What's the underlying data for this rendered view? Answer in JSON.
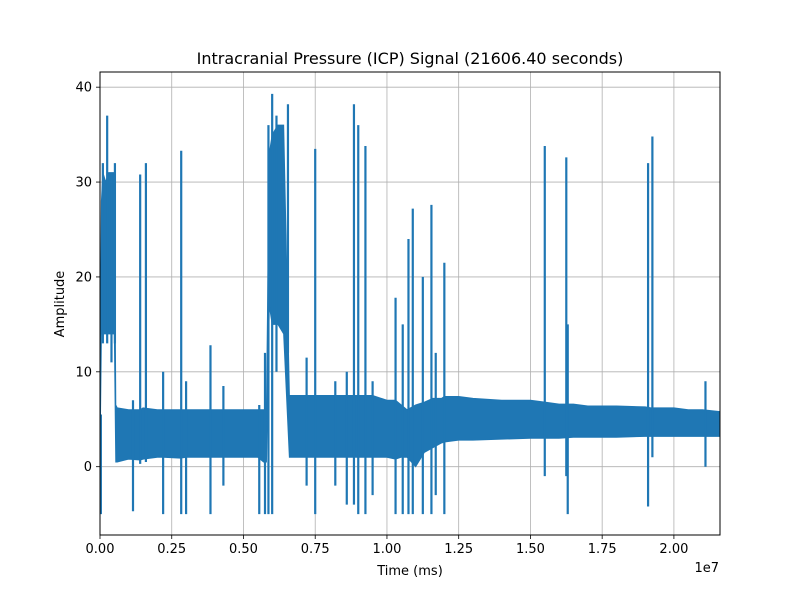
{
  "chart_data": {
    "type": "line",
    "title": "Intracranial Pressure (ICP) Signal (21606.40 seconds)",
    "xlabel": "Time (ms)",
    "ylabel": "Amplitude",
    "x_offset_text": "1e7",
    "xlim": [
      0,
      2.16064
    ],
    "ylim": [
      -7.2,
      41.6
    ],
    "x_ticks": [
      0.0,
      0.25,
      0.5,
      0.75,
      1.0,
      1.25,
      1.5,
      1.75,
      2.0
    ],
    "x_tick_labels": [
      "0.00",
      "0.25",
      "0.50",
      "0.75",
      "1.00",
      "1.25",
      "1.50",
      "1.75",
      "2.00"
    ],
    "y_ticks": [
      0,
      10,
      20,
      30,
      40
    ],
    "y_tick_labels": [
      "0",
      "10",
      "20",
      "30",
      "40"
    ],
    "grid": true,
    "color": "#1f77b4",
    "series": [
      {
        "name": "",
        "envelope_x": [
          0.0,
          0.005,
          0.01,
          0.02,
          0.03,
          0.05,
          0.055,
          0.06,
          0.1,
          0.14,
          0.15,
          0.2,
          0.22,
          0.28,
          0.3,
          0.35,
          0.38,
          0.4,
          0.45,
          0.5,
          0.55,
          0.57,
          0.58,
          0.59,
          0.6,
          0.62,
          0.64,
          0.66,
          0.67,
          0.7,
          0.75,
          0.8,
          0.85,
          0.88,
          0.9,
          0.92,
          0.95,
          1.0,
          1.03,
          1.05,
          1.07,
          1.1,
          1.13,
          1.16,
          1.19,
          1.2,
          1.25,
          1.3,
          1.4,
          1.5,
          1.55,
          1.6,
          1.65,
          1.7,
          1.8,
          1.9,
          1.92,
          2.0,
          2.05,
          2.1,
          2.16064
        ],
        "envelope_upper": [
          5.5,
          28,
          31,
          30,
          31,
          31,
          6.5,
          6.2,
          6.0,
          6.0,
          6.2,
          6.0,
          6.0,
          6.0,
          6.0,
          6.0,
          6.0,
          6.0,
          6.0,
          6.0,
          6.0,
          6.0,
          6.0,
          33,
          35,
          36,
          36,
          7.5,
          7.5,
          7.5,
          7.5,
          7.5,
          7.5,
          7.5,
          7.5,
          7.5,
          7.5,
          7.0,
          7.0,
          6.5,
          6.0,
          6.5,
          6.8,
          7.2,
          7.2,
          7.4,
          7.4,
          7.2,
          7.0,
          7.0,
          6.8,
          6.6,
          6.6,
          6.4,
          6.4,
          6.3,
          6.2,
          6.2,
          6.0,
          6.0,
          5.8
        ],
        "envelope_lower": [
          1.0,
          14,
          14,
          14,
          14,
          14,
          0.5,
          0.5,
          0.8,
          0.7,
          0.8,
          1.0,
          1.0,
          0.9,
          1.0,
          1.0,
          1.0,
          1.0,
          1.0,
          1.0,
          1.0,
          0.5,
          0.5,
          17,
          15,
          15,
          14,
          1.0,
          1.0,
          1.0,
          1.0,
          1.0,
          1.0,
          1.0,
          1.0,
          1.0,
          1.0,
          1.0,
          0.8,
          1.0,
          1.0,
          0.0,
          1.5,
          2.0,
          2.5,
          2.6,
          2.8,
          2.8,
          2.9,
          3.0,
          3.0,
          3.0,
          3.1,
          3.1,
          3.1,
          3.2,
          3.2,
          3.2,
          3.2,
          3.2,
          3.2
        ],
        "spikes": [
          {
            "x": 0.003,
            "top": 5.5,
            "bottom": -5
          },
          {
            "x": 0.01,
            "top": 32,
            "bottom": 13
          },
          {
            "x": 0.025,
            "top": 37,
            "bottom": 13
          },
          {
            "x": 0.04,
            "top": 31,
            "bottom": 11
          },
          {
            "x": 0.052,
            "top": 32,
            "bottom": 13
          },
          {
            "x": 0.115,
            "top": 7,
            "bottom": -4.7
          },
          {
            "x": 0.14,
            "top": 30.8,
            "bottom": 0.3
          },
          {
            "x": 0.16,
            "top": 32,
            "bottom": 0.5
          },
          {
            "x": 0.22,
            "top": 10,
            "bottom": -5
          },
          {
            "x": 0.283,
            "top": 33.3,
            "bottom": -5
          },
          {
            "x": 0.3,
            "top": 9,
            "bottom": -5
          },
          {
            "x": 0.385,
            "top": 12.8,
            "bottom": -5
          },
          {
            "x": 0.43,
            "top": 8.5,
            "bottom": -2
          },
          {
            "x": 0.555,
            "top": 6.5,
            "bottom": -5
          },
          {
            "x": 0.575,
            "top": 12,
            "bottom": -5
          },
          {
            "x": 0.587,
            "top": 36,
            "bottom": -5
          },
          {
            "x": 0.6,
            "top": 39.3,
            "bottom": -5
          },
          {
            "x": 0.615,
            "top": 37,
            "bottom": 10
          },
          {
            "x": 0.655,
            "top": 38.2,
            "bottom": 12
          },
          {
            "x": 0.72,
            "top": 11.5,
            "bottom": -2
          },
          {
            "x": 0.75,
            "top": 33.5,
            "bottom": -5
          },
          {
            "x": 0.82,
            "top": 9,
            "bottom": -2
          },
          {
            "x": 0.86,
            "top": 10,
            "bottom": -4
          },
          {
            "x": 0.885,
            "top": 38.2,
            "bottom": -4
          },
          {
            "x": 0.9,
            "top": 36,
            "bottom": -5
          },
          {
            "x": 0.925,
            "top": 33.8,
            "bottom": -5
          },
          {
            "x": 0.95,
            "top": 9,
            "bottom": -3
          },
          {
            "x": 1.03,
            "top": 17.8,
            "bottom": -5
          },
          {
            "x": 1.055,
            "top": 15,
            "bottom": -5
          },
          {
            "x": 1.075,
            "top": 24,
            "bottom": -5
          },
          {
            "x": 1.09,
            "top": 27.2,
            "bottom": -5
          },
          {
            "x": 1.125,
            "top": 20,
            "bottom": -5
          },
          {
            "x": 1.155,
            "top": 27.6,
            "bottom": -5
          },
          {
            "x": 1.17,
            "top": 12,
            "bottom": -3
          },
          {
            "x": 1.2,
            "top": 21.5,
            "bottom": -5
          },
          {
            "x": 1.55,
            "top": 33.8,
            "bottom": -1
          },
          {
            "x": 1.63,
            "top": 15,
            "bottom": -5
          },
          {
            "x": 1.625,
            "top": 32.6,
            "bottom": -1
          },
          {
            "x": 1.91,
            "top": 32,
            "bottom": -4.2
          },
          {
            "x": 1.925,
            "top": 34.8,
            "bottom": 1
          },
          {
            "x": 2.11,
            "top": 9,
            "bottom": 0
          }
        ]
      }
    ]
  }
}
